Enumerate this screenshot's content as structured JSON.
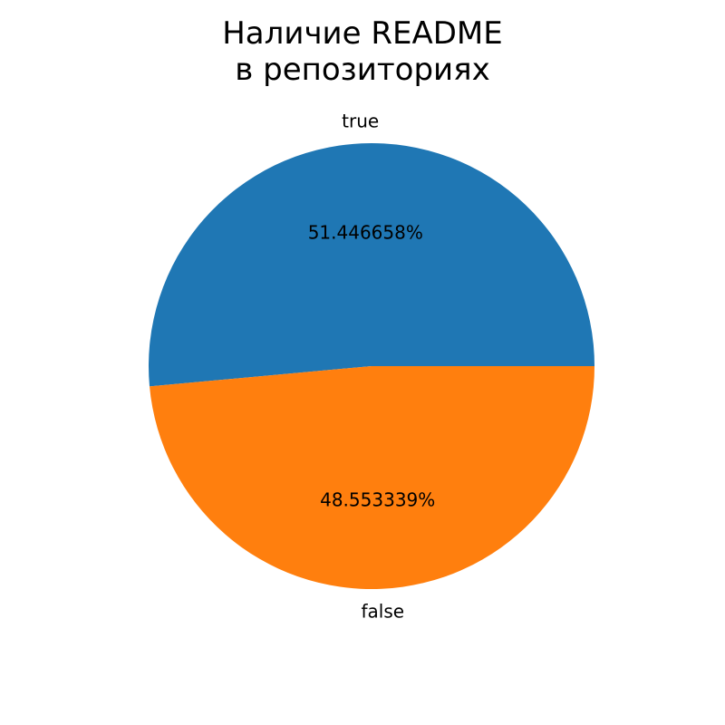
{
  "chart_data": {
    "type": "pie",
    "title_lines": [
      "Наличие README",
      "в репозиториях"
    ],
    "categories": [
      "true",
      "false"
    ],
    "values": [
      51.446658,
      48.553339
    ],
    "value_labels": [
      "51.446658%",
      "48.553339%"
    ],
    "colors": [
      "#1f77b4",
      "#ff7f0e"
    ],
    "legend": "none"
  }
}
